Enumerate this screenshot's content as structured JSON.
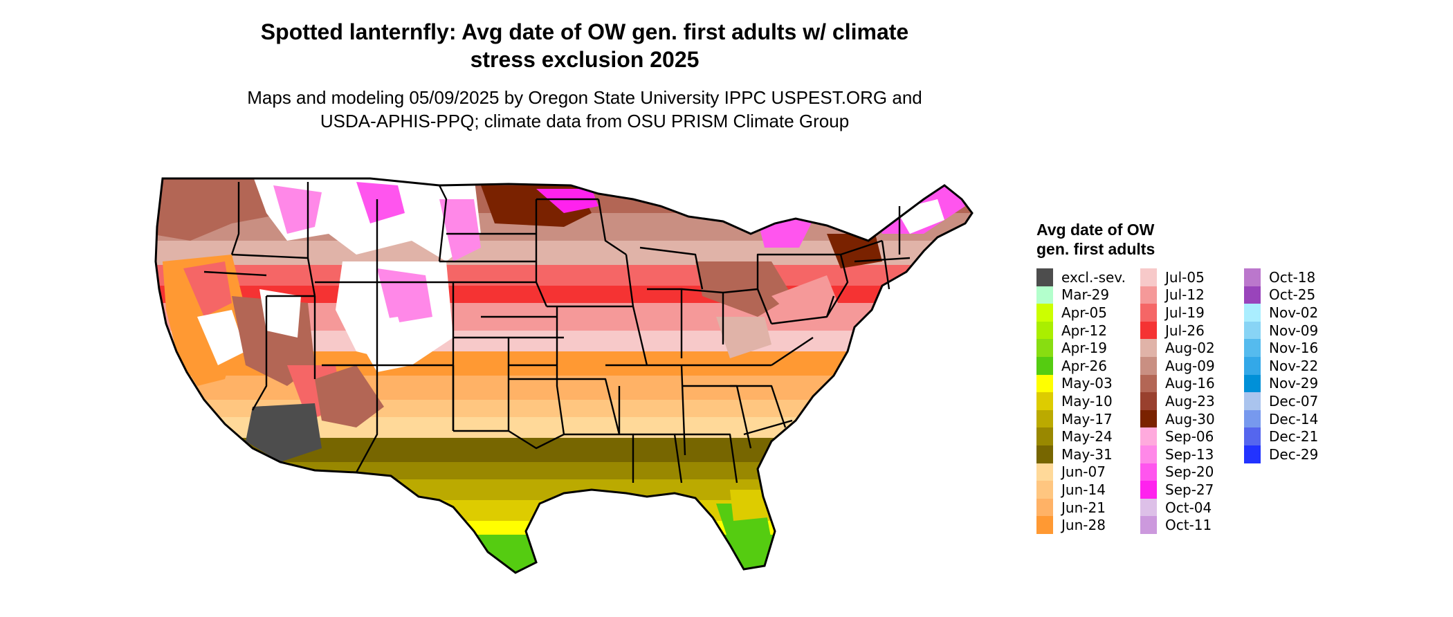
{
  "title_line1": "Spotted lanternfly: Avg date of OW gen. first adults w/ climate",
  "title_line2": "stress exclusion 2025",
  "subtitle_line1": "Maps and modeling 05/09/2025 by Oregon State University IPPC USPEST.ORG and",
  "subtitle_line2": "USDA-APHIS-PPQ; climate data from OSU PRISM Climate Group",
  "legend": {
    "title": "Avg date of OW gen. first adults",
    "columns": [
      [
        {
          "label": "excl.-sev.",
          "color": "#4d4d4d"
        },
        {
          "label": "Mar-29",
          "color": "#b3ffcc"
        },
        {
          "label": "Apr-05",
          "color": "#ccff00"
        },
        {
          "label": "Apr-12",
          "color": "#aaee00"
        },
        {
          "label": "Apr-19",
          "color": "#88dd11"
        },
        {
          "label": "Apr-26",
          "color": "#55cc11"
        },
        {
          "label": "May-03",
          "color": "#ffff00"
        },
        {
          "label": "May-10",
          "color": "#ddcc00"
        },
        {
          "label": "May-17",
          "color": "#bbaa00"
        },
        {
          "label": "May-24",
          "color": "#998800"
        },
        {
          "label": "May-31",
          "color": "#776600"
        },
        {
          "label": "Jun-07",
          "color": "#ffd999"
        },
        {
          "label": "Jun-14",
          "color": "#ffc680"
        },
        {
          "label": "Jun-21",
          "color": "#ffb266"
        },
        {
          "label": "Jun-28",
          "color": "#ff9933"
        }
      ],
      [
        {
          "label": "Jul-05",
          "color": "#f7c9c9"
        },
        {
          "label": "Jul-12",
          "color": "#f59999"
        },
        {
          "label": "Jul-19",
          "color": "#f56666"
        },
        {
          "label": "Jul-26",
          "color": "#f53333"
        },
        {
          "label": "Aug-02",
          "color": "#e0b3a8"
        },
        {
          "label": "Aug-09",
          "color": "#c98f82"
        },
        {
          "label": "Aug-16",
          "color": "#b36655"
        },
        {
          "label": "Aug-23",
          "color": "#99402e"
        },
        {
          "label": "Aug-30",
          "color": "#7a2200"
        },
        {
          "label": "Sep-06",
          "color": "#ffaadd"
        },
        {
          "label": "Sep-13",
          "color": "#ff88e8"
        },
        {
          "label": "Sep-20",
          "color": "#ff55ee"
        },
        {
          "label": "Sep-27",
          "color": "#ff22ee"
        },
        {
          "label": "Oct-04",
          "color": "#ddc0e8"
        },
        {
          "label": "Oct-11",
          "color": "#cc99dd"
        }
      ],
      [
        {
          "label": "Oct-18",
          "color": "#bb77cc"
        },
        {
          "label": "Oct-25",
          "color": "#9944bb"
        },
        {
          "label": "Nov-02",
          "color": "#aaeeff"
        },
        {
          "label": "Nov-09",
          "color": "#88d4f5"
        },
        {
          "label": "Nov-16",
          "color": "#55bbee"
        },
        {
          "label": "Nov-22",
          "color": "#33a8e8"
        },
        {
          "label": "Nov-29",
          "color": "#0090d8"
        },
        {
          "label": "Dec-07",
          "color": "#aac4ee"
        },
        {
          "label": "Dec-14",
          "color": "#7799ee"
        },
        {
          "label": "Dec-21",
          "color": "#5566ee"
        },
        {
          "label": "Dec-29",
          "color": "#2233ff"
        }
      ]
    ]
  },
  "map_colors": {
    "unsuitable": "#ffffff",
    "boundary": "#000000"
  }
}
